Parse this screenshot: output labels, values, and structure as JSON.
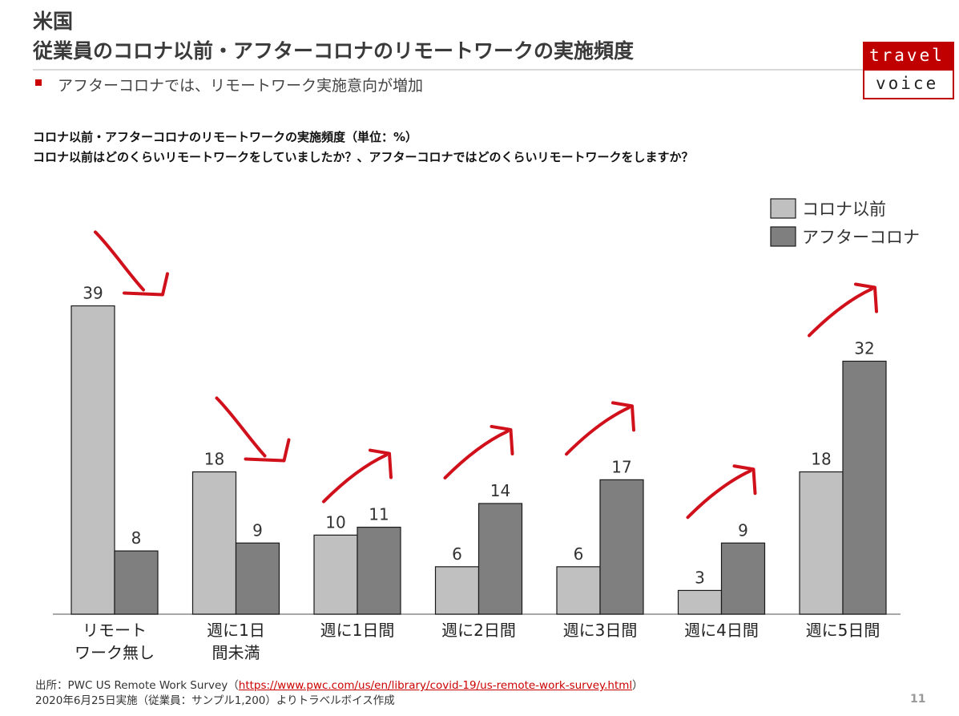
{
  "header": {
    "title_line1": "米国",
    "title_line2": "従業員のコロナ以前・アフターコロナのリモートワークの実施頻度",
    "bullet": "アフターコロナでは、リモートワーク実施意向が増加"
  },
  "logo": {
    "word1": "travel",
    "word2": "voice"
  },
  "chart_data": {
    "type": "bar",
    "title": "コロナ以前・アフターコロナのリモートワークの実施頻度（単位：%）",
    "subtitle": "コロナ以前はどのくらいリモートワークをしていましたか？、アフターコロナではどのくらいリモートワークをしますか？",
    "categories": [
      [
        "リモート",
        "ワーク無し"
      ],
      [
        "週に1日",
        "間未満"
      ],
      [
        "週に1日間"
      ],
      [
        "週に2日間"
      ],
      [
        "週に3日間"
      ],
      [
        "週に4日間"
      ],
      [
        "週に5日間"
      ]
    ],
    "series": [
      {
        "name": "コロナ以前",
        "color": "#c0c0c0",
        "values": [
          39,
          18,
          10,
          6,
          6,
          3,
          18
        ]
      },
      {
        "name": "アフターコロナ",
        "color": "#7f7f7f",
        "values": [
          8,
          9,
          11,
          14,
          17,
          9,
          32
        ]
      }
    ],
    "ylim": [
      0,
      40
    ],
    "grid": false,
    "legend_position": "top-right",
    "annotations": {
      "arrow_color": "#d0101a",
      "arrows": [
        "down",
        "down",
        "up",
        "up",
        "up",
        "up",
        "up"
      ]
    }
  },
  "source": {
    "line1_prefix": "出所：PWC US Remote Work Survey（",
    "url": "https://www.pwc.com/us/en/library/covid-19/us-remote-work-survey.html",
    "line1_suffix": "）",
    "line2": "2020年6月25日実施（従業員：サンプル1,200）よりトラベルボイス作成"
  },
  "page_number": "11"
}
